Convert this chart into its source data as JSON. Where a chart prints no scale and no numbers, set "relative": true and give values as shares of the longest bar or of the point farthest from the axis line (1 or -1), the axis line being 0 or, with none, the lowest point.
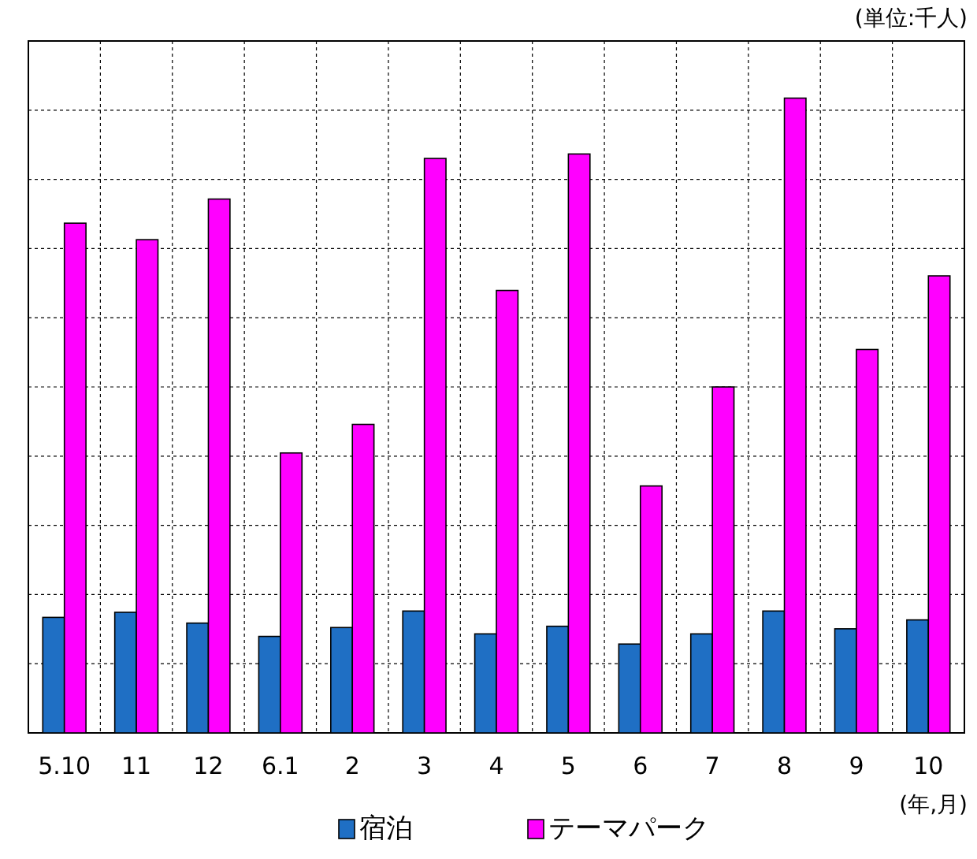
{
  "chart_data": {
    "type": "bar",
    "relative": true,
    "xlabel": "(年,月)",
    "annotations": [
      "(単位:千人)"
    ],
    "categories": [
      "5.10",
      "11",
      "12",
      "6.1",
      "2",
      "3",
      "4",
      "5",
      "6",
      "7",
      "8",
      "9",
      "10"
    ],
    "series": [
      {
        "name": "宿泊",
        "color": "#1f6fc4",
        "values": [
          0.182,
          0.19,
          0.173,
          0.152,
          0.166,
          0.192,
          0.156,
          0.168,
          0.14,
          0.156,
          0.192,
          0.164,
          0.178
        ]
      },
      {
        "name": "テーマパーク",
        "color": "#ff00ff",
        "values": [
          0.803,
          0.777,
          0.841,
          0.441,
          0.486,
          0.905,
          0.697,
          0.912,
          0.389,
          0.545,
          1,
          0.604,
          0.72
        ]
      }
    ],
    "grid": true,
    "legend": "bottom"
  }
}
